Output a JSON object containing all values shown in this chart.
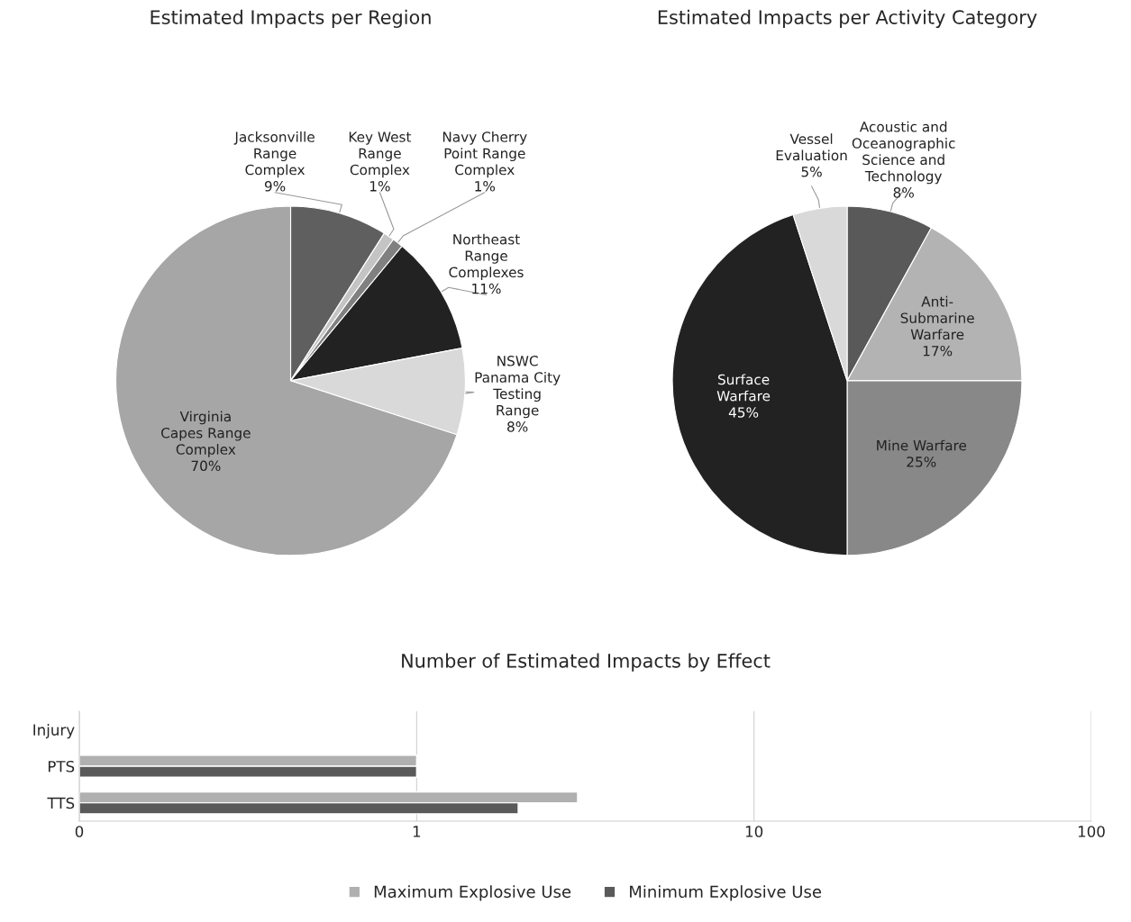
{
  "chart_data": [
    {
      "type": "pie",
      "title": "Estimated Impacts per Region",
      "categories": [
        "Jacksonville\nRange\nComplex",
        "Key West\nRange\nComplex",
        "Navy Cherry\nPoint Range\nComplex",
        "Northeast\nRange\nComplexes",
        "NSWC\nPanama City\nTesting\nRange",
        "Virginia\nCapes Range\nComplex"
      ],
      "values": [
        9,
        1,
        1,
        11,
        8,
        70
      ],
      "value_labels": [
        "9%",
        "1%",
        "1%",
        "11%",
        "8%",
        "70%"
      ],
      "colors": [
        "#5f5f5f",
        "#c4c4c4",
        "#808080",
        "#222222",
        "#d9d9d9",
        "#a6a6a6"
      ]
    },
    {
      "type": "pie",
      "title": "Estimated Impacts per Activity Category",
      "categories": [
        "Acoustic and\nOceanographic\nScience and\nTechnology",
        "Anti-\nSubmarine\nWarfare",
        "Mine Warfare",
        "Surface\nWarfare",
        "Vessel\nEvaluation"
      ],
      "values": [
        8,
        17,
        25,
        45,
        5
      ],
      "value_labels": [
        "8%",
        "17%",
        "25%",
        "45%",
        "5%"
      ],
      "colors": [
        "#595959",
        "#b3b3b3",
        "#888888",
        "#222222",
        "#d9d9d9"
      ]
    },
    {
      "type": "bar",
      "orientation": "horizontal",
      "title": "Number of Estimated Impacts by Effect",
      "categories": [
        "Injury",
        "PTS",
        "TTS"
      ],
      "series": [
        {
          "name": "Maximum Explosive Use",
          "color": "#b0b0b0",
          "values": [
            null,
            1,
            3
          ]
        },
        {
          "name": "Minimum Explosive Use",
          "color": "#5a5a5a",
          "values": [
            null,
            1,
            2
          ]
        }
      ],
      "log": "x",
      "xlim": [
        0.1,
        100
      ],
      "xticks": [
        {
          "value": 0.1,
          "label": "0"
        },
        1,
        10,
        100
      ],
      "grid": "x",
      "legend": "bottom"
    }
  ]
}
